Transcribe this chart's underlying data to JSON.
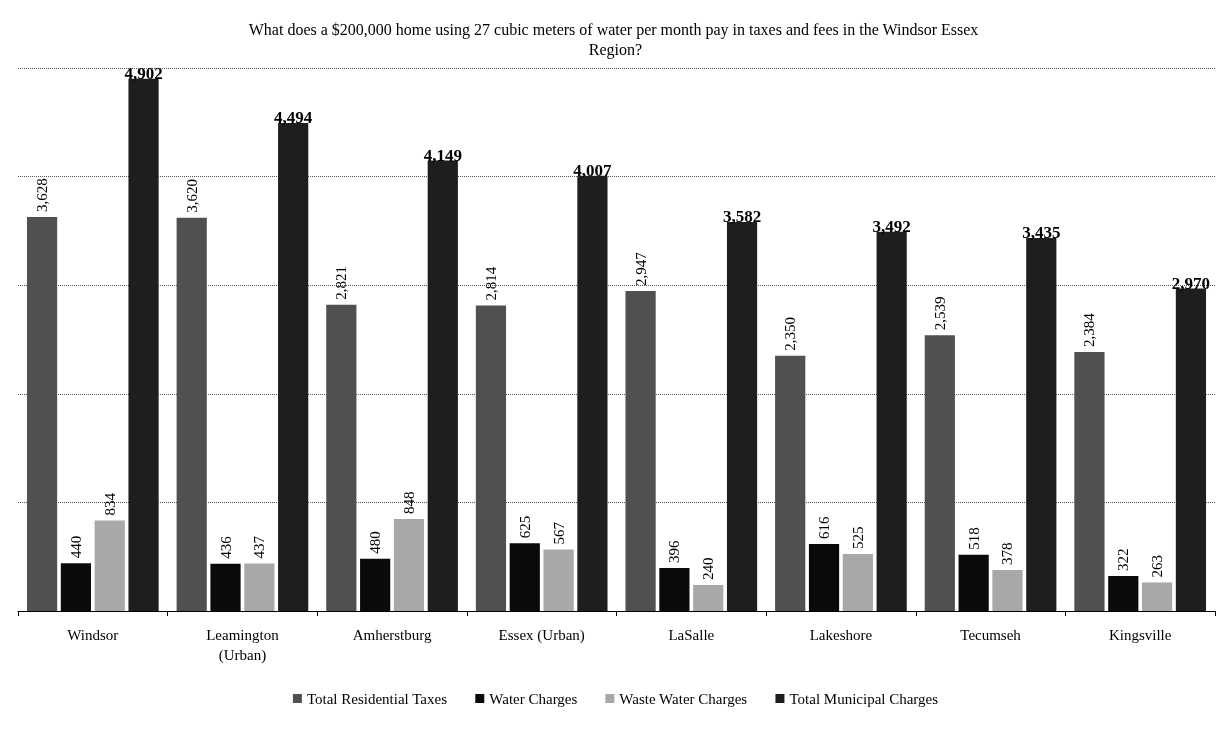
{
  "chart_data": {
    "type": "bar",
    "title": "What does a $200,000 home using 27 cubic meters of water per month pay in taxes and fees in the Windsor Essex Region?",
    "categories": [
      "Windsor",
      "Leamington\n(Urban)",
      "Amherstburg",
      "Essex (Urban)",
      "LaSalle",
      "Lakeshore",
      "Tecumseh",
      "Kingsville"
    ],
    "series": [
      {
        "name": "Total Residential Taxes",
        "color": "#505050",
        "values": [
          3628,
          3620,
          2821,
          2814,
          2947,
          2350,
          2539,
          2384
        ],
        "value_labels": [
          "3,628",
          "3,620",
          "2,821",
          "2,814",
          "2,947",
          "2,350",
          "2,539",
          "2,384"
        ]
      },
      {
        "name": "Water Charges",
        "color": "#0a0a0a",
        "values": [
          440,
          436,
          480,
          625,
          396,
          616,
          518,
          322
        ],
        "value_labels": [
          "440",
          "436",
          "480",
          "625",
          "396",
          "616",
          "518",
          "322"
        ]
      },
      {
        "name": "Waste Water Charges",
        "color": "#a8a8a8",
        "values": [
          834,
          437,
          848,
          567,
          240,
          525,
          378,
          263
        ],
        "value_labels": [
          "834",
          "437",
          "848",
          "567",
          "240",
          "525",
          "378",
          "263"
        ]
      },
      {
        "name": "Total Municipal Charges",
        "color": "#1e1e1e",
        "values": [
          4902,
          4494,
          4149,
          4007,
          3582,
          3492,
          3435,
          2970
        ],
        "value_labels": [
          "4,902",
          "4,494",
          "4,149",
          "4,007",
          "3,582",
          "3,492",
          "3,435",
          "2,970"
        ]
      }
    ],
    "ylim": [
      0,
      5000
    ],
    "yticks": [
      {
        "value": 0,
        "label": null
      },
      {
        "value": 1000,
        "label": null
      },
      {
        "value": 2000,
        "label": null
      },
      {
        "value": 3000,
        "label": null
      },
      {
        "value": 4000,
        "label": null
      },
      {
        "value": 5000,
        "label": null
      }
    ],
    "grid": "y",
    "legend": "bottom",
    "tick_labels": "x"
  }
}
